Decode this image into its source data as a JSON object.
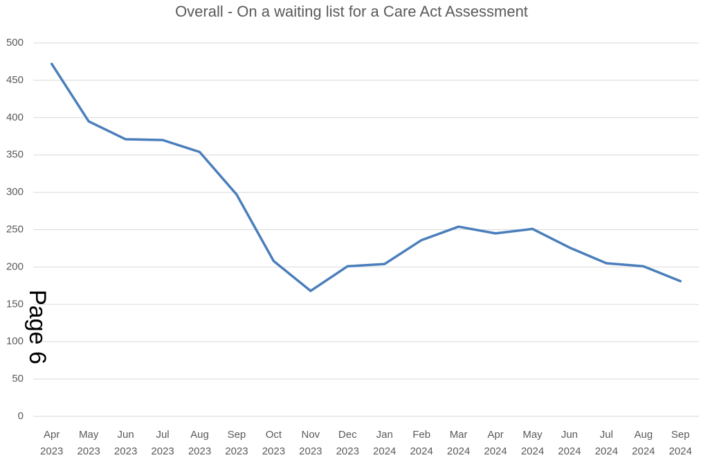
{
  "chart_data": {
    "type": "line",
    "title": "Overall - On a waiting list for a Care Act Assessment",
    "categories": [
      "Apr 2023",
      "May 2023",
      "Jun 2023",
      "Jul 2023",
      "Aug 2023",
      "Sep 2023",
      "Oct 2023",
      "Nov 2023",
      "Dec 2023",
      "Jan 2024",
      "Feb 2024",
      "Mar 2024",
      "Apr 2024",
      "May 2024",
      "Jun 2024",
      "Jul 2024",
      "Aug 2024",
      "Sep 2024"
    ],
    "series": [
      {
        "name": "Overall",
        "color": "#4a7ebb",
        "values": [
          472,
          395,
          371,
          370,
          354,
          297,
          208,
          168,
          201,
          204,
          236,
          254,
          245,
          251,
          226,
          205,
          201,
          181
        ]
      }
    ],
    "ylim": [
      0,
      500
    ],
    "yticks": [
      0,
      50,
      100,
      150,
      200,
      250,
      300,
      350,
      400,
      450,
      500
    ],
    "grid": true,
    "annotation": "Page 6"
  }
}
